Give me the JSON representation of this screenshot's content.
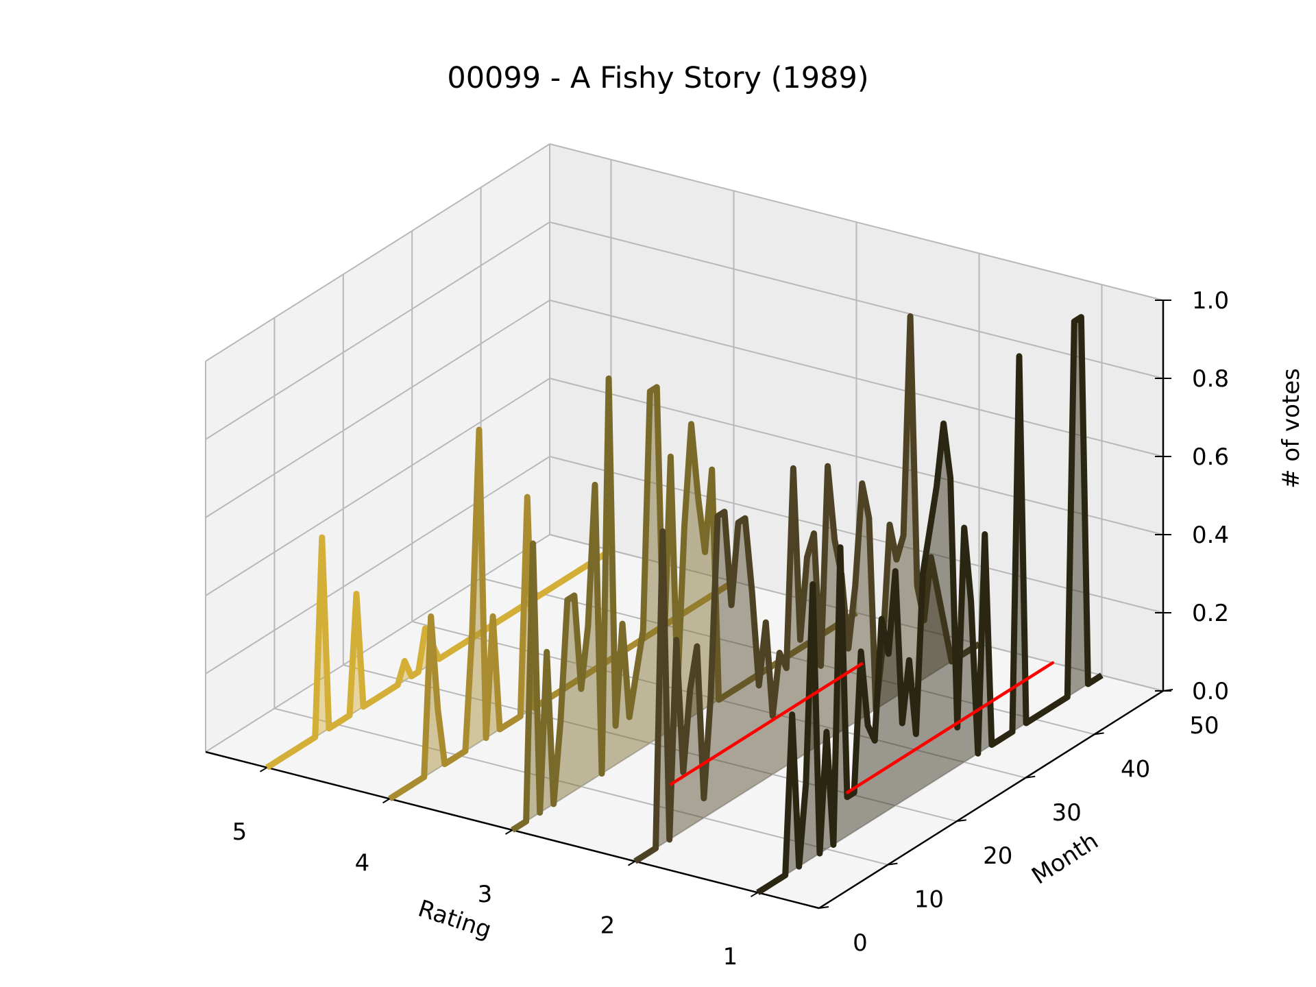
{
  "chart_data": {
    "type": "line",
    "subtype": "3d-waterfall-lines-with-fill",
    "title": "00099 - A Fishy Story (1989)",
    "xlabel": "Rating",
    "ylabel": "Month",
    "zlabel": "# of votes",
    "x_ticks": [
      "5",
      "4",
      "3",
      "2",
      "1"
    ],
    "y_ticks": [
      "0",
      "10",
      "20",
      "30",
      "40",
      "50"
    ],
    "z_ticks": [
      "0.0",
      "0.2",
      "0.4",
      "0.6",
      "0.8",
      "1.0"
    ],
    "xlim": [
      0.5,
      5.5
    ],
    "ylim": [
      0,
      50
    ],
    "zlim": [
      0,
      1
    ],
    "grid": true,
    "series": [
      {
        "rating": 5,
        "color": "#d4af37",
        "values": [
          0,
          0,
          0,
          0,
          0,
          0,
          0,
          0,
          0.5,
          0,
          0,
          0,
          0,
          0.3,
          0,
          0,
          0,
          0,
          0,
          0,
          0.05,
          0,
          0,
          0.1,
          0.05,
          0,
          0,
          0,
          0,
          0,
          0,
          0,
          0,
          0,
          0,
          0,
          0,
          0,
          0,
          0,
          0,
          0,
          0,
          0,
          0,
          0,
          0,
          0,
          0,
          0,
          0
        ]
      },
      {
        "rating": 4,
        "color": "#a98c2f",
        "values": [
          0,
          0,
          0,
          0,
          0,
          0,
          0.4,
          0.15,
          0,
          0,
          0,
          0,
          0.3,
          0.8,
          0,
          0.3,
          0,
          0,
          0,
          0,
          0.55,
          0,
          0,
          0,
          0,
          0,
          0,
          0,
          0,
          0,
          0,
          0,
          0,
          0,
          0,
          0,
          0,
          0,
          0,
          0,
          0,
          0,
          0,
          0,
          0,
          0,
          0,
          0,
          0,
          0,
          0
        ]
      },
      {
        "rating": 3,
        "color": "#7a6a2a",
        "values": [
          0,
          0,
          0,
          0.7,
          0,
          0.4,
          0,
          0.2,
          0.5,
          0.5,
          0.25,
          0.4,
          0.75,
          0,
          1.0,
          0.1,
          0.35,
          0.1,
          0.2,
          0.3,
          0.9,
          0.9,
          0.2,
          0.7,
          0.1,
          0.5,
          0.75,
          0.55,
          0.4,
          0.6,
          0,
          0,
          0,
          0,
          0,
          0,
          0,
          0,
          0,
          0,
          0,
          0,
          0,
          0,
          0,
          0,
          0,
          0,
          0,
          0,
          0
        ]
      },
      {
        "rating": 2,
        "color": "#4d4324",
        "values": [
          0,
          0,
          0,
          0,
          0.8,
          0,
          0.5,
          0.15,
          0.35,
          0.45,
          0.05,
          0.3,
          0.75,
          0.75,
          0.5,
          0.7,
          0.7,
          0.5,
          0.25,
          0.4,
          0.15,
          0.3,
          0.25,
          0.75,
          0.3,
          0.5,
          0.55,
          0.2,
          0.7,
          0.5,
          0.4,
          0.2,
          0.35,
          0.6,
          0.5,
          0,
          0.15,
          0.45,
          0.35,
          0.4,
          0.95,
          0.25,
          0.15,
          0.3,
          0.2,
          0.1,
          0,
          0,
          0,
          0,
          0
        ]
      },
      {
        "rating": 1,
        "color": "#2b2612",
        "values": [
          0,
          0,
          0,
          0,
          0,
          0.4,
          0,
          0.2,
          0.7,
          0,
          0.3,
          0,
          0.75,
          0.1,
          0.1,
          0.45,
          0.25,
          0.2,
          0.5,
          0.4,
          0.6,
          0.2,
          0.35,
          0.15,
          0.55,
          0.65,
          0.75,
          0.9,
          0.75,
          0.1,
          0.6,
          0.4,
          0,
          0.55,
          0,
          0,
          0,
          0,
          0.95,
          0,
          0,
          0,
          0,
          0,
          0,
          0,
          0.95,
          0.95,
          0,
          0,
          0
        ]
      }
    ],
    "red_traces": [
      {
        "rating": 2.5,
        "points": [
          [
            14,
            0
          ],
          [
            25,
            0
          ],
          [
            15,
            0
          ],
          [
            24,
            0
          ],
          [
            16,
            0
          ],
          [
            26,
            0
          ],
          [
            18,
            0
          ],
          [
            22,
            0
          ],
          [
            19,
            0
          ],
          [
            28,
            0
          ],
          [
            20,
            0
          ],
          [
            30,
            0
          ],
          [
            22,
            0
          ],
          [
            34,
            0
          ],
          [
            24,
            0
          ],
          [
            31,
            0
          ],
          [
            27,
            0
          ],
          [
            35,
            0
          ],
          [
            29,
            0
          ],
          [
            37,
            0
          ],
          [
            31,
            0
          ],
          [
            39,
            0
          ],
          [
            33,
            0
          ],
          [
            40,
            0
          ],
          [
            34,
            0
          ],
          [
            42,
            0
          ]
        ]
      },
      {
        "rating": 1.4,
        "points": [
          [
            20,
            0
          ],
          [
            28,
            0
          ],
          [
            22,
            0
          ],
          [
            32,
            0
          ],
          [
            24,
            0
          ],
          [
            36,
            0
          ],
          [
            27,
            0
          ],
          [
            38,
            0
          ],
          [
            29,
            0
          ],
          [
            40,
            0
          ],
          [
            31,
            0
          ],
          [
            43,
            0
          ],
          [
            33,
            0
          ],
          [
            46,
            0
          ],
          [
            36,
            0
          ],
          [
            44,
            0
          ],
          [
            38,
            0
          ],
          [
            48,
            0
          ],
          [
            40,
            0
          ],
          [
            50,
            0
          ],
          [
            42,
            0
          ],
          [
            49,
            0
          ],
          [
            44,
            0
          ],
          [
            50,
            0
          ]
        ]
      }
    ]
  }
}
